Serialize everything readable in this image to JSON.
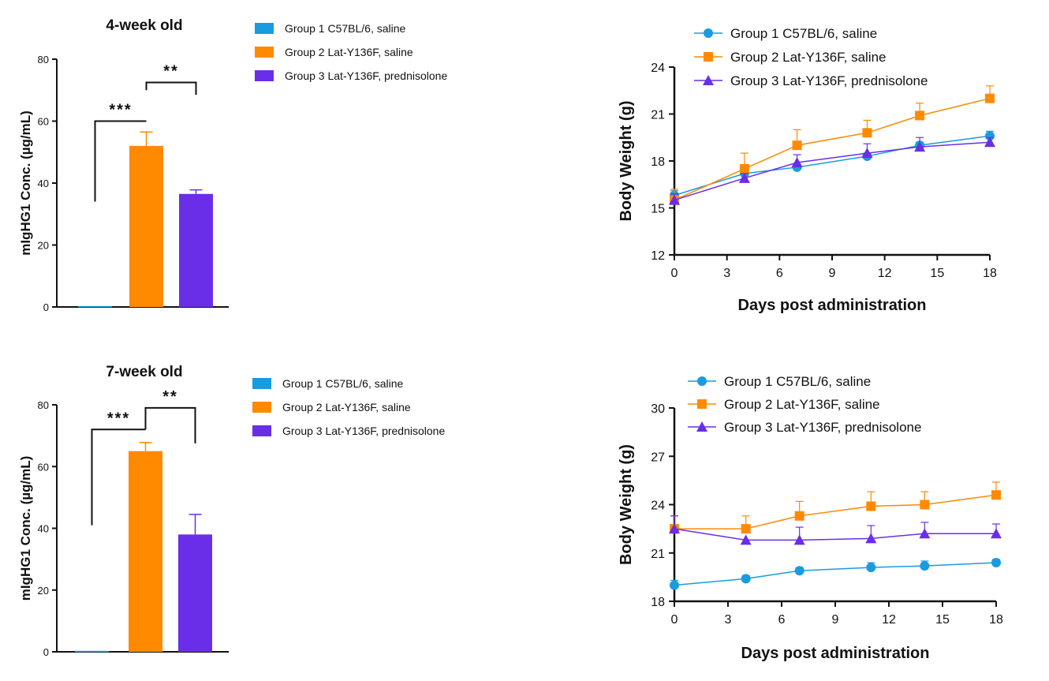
{
  "chart_data": [
    {
      "type": "bar",
      "id": "bar1",
      "title": "4-week old",
      "ylabel": "mIgHG1 Conc. (µg/mL)",
      "xlabel": "",
      "ylim": [
        0,
        80
      ],
      "yticks": [
        0,
        20,
        40,
        60,
        80
      ],
      "categories": [
        "Group 1 C57BL/6, saline",
        "Group 2 Lat-Y136F, saline",
        "Group 3 Lat-Y136F, prednisolone"
      ],
      "values": [
        0.3,
        52,
        36.5
      ],
      "errors": [
        0,
        4.5,
        1.3
      ],
      "colors": [
        "#1a9be0",
        "#ff8a00",
        "#6a2ee8"
      ],
      "legend": [
        "Group 1 C57BL/6, saline",
        "Group 2 Lat-Y136F, saline",
        "Group 3 Lat-Y136F, prednisolone"
      ],
      "significance": [
        {
          "from": 0,
          "to": 1,
          "label": "***",
          "y_left": 34,
          "y_top": 60
        },
        {
          "from": 1,
          "to": 2,
          "label": "**",
          "y_left": 70,
          "y_top": 72.5,
          "y_right": 68.5
        }
      ]
    },
    {
      "type": "bar",
      "id": "bar2",
      "title": "7-week old",
      "ylabel": "mIgHG1 Conc. (µg/mL)",
      "xlabel": "",
      "ylim": [
        0,
        80
      ],
      "yticks": [
        0,
        20,
        40,
        60,
        80
      ],
      "categories": [
        "Group 1 C57BL/6, saline",
        "Group 2 Lat-Y136F, saline",
        "Group 3 Lat-Y136F, prednisolone"
      ],
      "values": [
        0.3,
        65,
        38
      ],
      "errors": [
        0,
        2.8,
        6.5
      ],
      "colors": [
        "#1a9be0",
        "#ff8a00",
        "#6a2ee8"
      ],
      "legend": [
        "Group 1 C57BL/6, saline",
        "Group 2 Lat-Y136F, saline",
        "Group 3 Lat-Y136F, prednisolone"
      ],
      "significance": [
        {
          "from": 0,
          "to": 1,
          "label": "***",
          "y_left": 41,
          "y_top": 72
        },
        {
          "from": 1,
          "to": 2,
          "label": "**",
          "y_left": 72,
          "y_top": 79,
          "y_right": 67.5
        }
      ]
    },
    {
      "type": "line",
      "id": "line1",
      "title": "",
      "xlabel": "Days post administration",
      "ylabel": "Body Weight (g)",
      "xlim": [
        0,
        18
      ],
      "xticks": [
        0,
        3,
        6,
        9,
        12,
        15,
        18
      ],
      "ylim": [
        12,
        24
      ],
      "yticks": [
        12,
        15,
        18,
        21,
        24
      ],
      "x": [
        0,
        4,
        7,
        11,
        14,
        18
      ],
      "series": [
        {
          "name": "Group 1 C57BL/6, saline",
          "color": "#1a9be0",
          "marker": "circle",
          "values": [
            15.8,
            17.2,
            17.6,
            18.3,
            19.0,
            19.6
          ],
          "errors": [
            0.3,
            0.3,
            0.2,
            0.2,
            0.2,
            0.3
          ]
        },
        {
          "name": "Group 2 Lat-Y136F, saline",
          "color": "#ff8a00",
          "marker": "square",
          "values": [
            15.5,
            17.5,
            19.0,
            19.8,
            20.9,
            22.0
          ],
          "errors": [
            0.7,
            1.0,
            1.0,
            0.8,
            0.8,
            0.8
          ]
        },
        {
          "name": "Group 3 Lat-Y136F,  prednisolone",
          "color": "#6a2ee8",
          "marker": "triangle",
          "values": [
            15.5,
            16.9,
            17.9,
            18.5,
            18.9,
            19.2
          ],
          "errors": [
            0.4,
            0.3,
            0.5,
            0.6,
            0.6,
            0.3
          ]
        }
      ]
    },
    {
      "type": "line",
      "id": "line2",
      "title": "",
      "xlabel": "Days post administration",
      "ylabel": "Body Weight (g)",
      "xlim": [
        0,
        18
      ],
      "xticks": [
        0,
        3,
        6,
        9,
        12,
        15,
        18
      ],
      "ylim": [
        18,
        30
      ],
      "yticks": [
        18,
        21,
        24,
        27,
        30
      ],
      "x": [
        0,
        4,
        7,
        11,
        14,
        18
      ],
      "series": [
        {
          "name": "Group 1 C57BL/6, saline",
          "color": "#1a9be0",
          "marker": "circle",
          "values": [
            19.0,
            19.4,
            19.9,
            20.1,
            20.2,
            20.4
          ],
          "errors": [
            0.3,
            0.2,
            0.2,
            0.3,
            0.3,
            0.2
          ]
        },
        {
          "name": "Group 2 Lat-Y136F, saline",
          "color": "#ff8a00",
          "marker": "square",
          "values": [
            22.5,
            22.5,
            23.3,
            23.9,
            24.0,
            24.6
          ],
          "errors": [
            0.8,
            0.8,
            0.9,
            0.9,
            0.8,
            0.8
          ]
        },
        {
          "name": "Group 3 Lat-Y136F, prednisolone",
          "color": "#6a2ee8",
          "marker": "triangle",
          "values": [
            22.5,
            21.8,
            21.8,
            21.9,
            22.2,
            22.2
          ],
          "errors": [
            0.8,
            0.0,
            0.8,
            0.8,
            0.7,
            0.6
          ]
        }
      ]
    }
  ]
}
